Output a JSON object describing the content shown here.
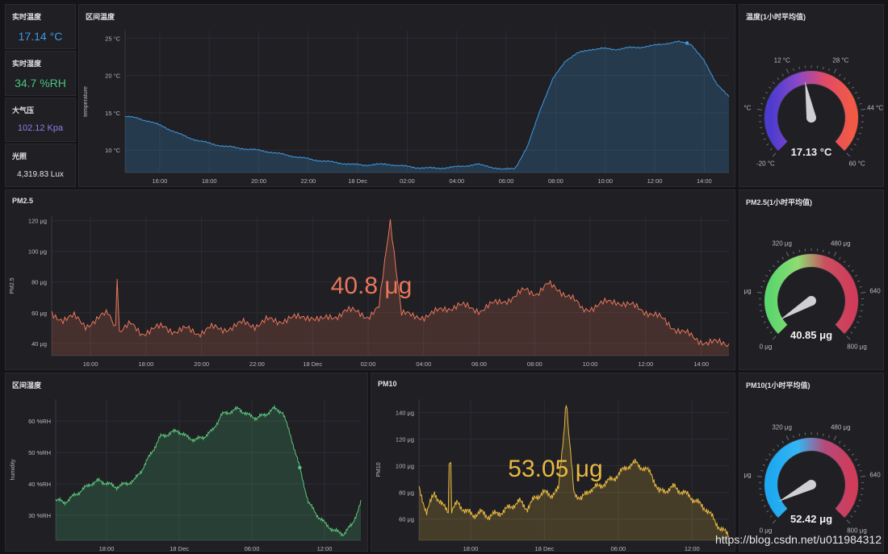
{
  "colors": {
    "bg": "#151518",
    "panel": "#1f1f24",
    "blue": "#3f9ae0",
    "green": "#49c47e",
    "purple": "#8f7fe8",
    "white": "#e6e6e6",
    "orange": "#e8765a",
    "yellow": "#e8b840"
  },
  "stats": [
    {
      "title": "实时温度",
      "value": "17.14 °C",
      "color": "#3f9ae0"
    },
    {
      "title": "实时湿度",
      "value": "34.7 %RH",
      "color": "#49c47e"
    },
    {
      "title": "大气压",
      "value": "102.12 Kpa",
      "color": "#8f7fe8"
    },
    {
      "title": "光照",
      "value": "4,319.83 Lux",
      "color": "#e6e6e6"
    }
  ],
  "chart_data": [
    {
      "type": "area",
      "title": "区间温度",
      "ylabel": "temperature",
      "y_ticks": [
        "25 °C",
        "20 °C",
        "15 °C",
        "10 °C"
      ],
      "ylim": [
        7,
        26
      ],
      "x_ticks": [
        "16:00",
        "18:00",
        "20:00",
        "22:00",
        "18 Dec",
        "02:00",
        "04:00",
        "06:00",
        "08:00",
        "10:00",
        "12:00",
        "14:00"
      ],
      "x": [
        0,
        1,
        2,
        3,
        4,
        5,
        6,
        7,
        8,
        9,
        10,
        11,
        12,
        13,
        14,
        15,
        16,
        17,
        18,
        19,
        20,
        21,
        22,
        23,
        24,
        25,
        26,
        27,
        28,
        29,
        30,
        31,
        32,
        33,
        34,
        35,
        36,
        37,
        38,
        39,
        40,
        41,
        42,
        43,
        44,
        45,
        46,
        47,
        48
      ],
      "values": [
        14.5,
        14.3,
        13.8,
        13.2,
        12.4,
        11.7,
        11.2,
        10.8,
        10.5,
        10.3,
        10.1,
        9.9,
        9.6,
        9.3,
        9.0,
        8.7,
        8.5,
        8.3,
        8.1,
        8.0,
        8.1,
        8.1,
        7.9,
        7.7,
        7.6,
        7.6,
        7.7,
        7.9,
        8.1,
        7.8,
        7.4,
        7.6,
        10.5,
        15.5,
        19.5,
        22.0,
        23.0,
        23.5,
        23.6,
        23.5,
        23.7,
        23.8,
        24.0,
        24.3,
        24.5,
        24.2,
        22.0,
        19.0,
        17.1
      ]
    },
    {
      "type": "area",
      "title": "PM2.5",
      "ylabel": "PM2.5",
      "big_value": "40.8 μg",
      "y_ticks": [
        "120 μg",
        "100 μg",
        "80 μg",
        "60 μg",
        "40 μg"
      ],
      "ylim": [
        32,
        123
      ],
      "x_ticks": [
        "16:00",
        "18:00",
        "20:00",
        "22:00",
        "18 Dec",
        "02:00",
        "04:00",
        "06:00",
        "08:00",
        "10:00",
        "12:00",
        "14:00"
      ],
      "x": [
        0,
        1,
        2,
        3,
        4,
        5,
        6,
        7,
        8,
        9,
        10,
        11,
        12,
        13,
        14,
        15,
        16,
        17,
        18,
        19,
        20,
        21,
        22,
        23,
        24,
        25,
        26,
        27,
        28,
        29,
        30,
        31,
        32,
        33,
        34,
        35,
        36,
        37,
        38,
        39,
        40,
        41,
        42,
        43,
        44,
        45,
        46,
        47,
        48,
        49,
        50,
        51,
        52,
        53,
        54,
        55,
        56,
        57,
        58,
        59,
        60
      ],
      "values": [
        59,
        56,
        57,
        52,
        55,
        60,
        48,
        52,
        47,
        49,
        51,
        48,
        49,
        47,
        50,
        49,
        51,
        53,
        52,
        55,
        54,
        57,
        56,
        58,
        55,
        57,
        62,
        60,
        58,
        63,
        121,
        60,
        57,
        58,
        60,
        63,
        65,
        63,
        62,
        65,
        68,
        70,
        75,
        73,
        78,
        75,
        70,
        62,
        64,
        66,
        68,
        65,
        63,
        60,
        56,
        51,
        47,
        43,
        41,
        40,
        40
      ],
      "spikes": [
        [
          5.8,
          82
        ],
        [
          30,
          121
        ]
      ]
    },
    {
      "type": "area",
      "title": "区间湿度",
      "ylabel": "humidity",
      "y_ticks": [
        "60 %RH",
        "50 %RH",
        "40 %RH",
        "30 %RH"
      ],
      "ylim": [
        22,
        67
      ],
      "x_ticks": [
        "18:00",
        "18 Dec",
        "06:00",
        "12:00"
      ],
      "x": [
        0,
        1,
        2,
        3,
        4,
        5,
        6,
        7,
        8,
        9,
        10,
        11,
        12,
        13,
        14,
        15,
        16,
        17,
        18,
        19,
        20,
        21,
        22,
        23,
        24,
        25,
        26,
        27,
        28,
        29,
        30,
        31,
        32,
        33,
        34,
        35
      ],
      "values": [
        35,
        34,
        36,
        38,
        40,
        41,
        40,
        39,
        40,
        41,
        45,
        50,
        55,
        56,
        57,
        55,
        54,
        55,
        57,
        62,
        63,
        64,
        62,
        61,
        62,
        64,
        63,
        55,
        45,
        34,
        30,
        27,
        25,
        24,
        27,
        34
      ]
    },
    {
      "type": "area",
      "title": "PM10",
      "ylabel": "PM10",
      "big_value": "53.05 μg",
      "y_ticks": [
        "140 μg",
        "120 μg",
        "100 μg",
        "80 μg",
        "60 μg"
      ],
      "ylim": [
        44,
        150
      ],
      "x_ticks": [
        "18:00",
        "18 Dec",
        "06:00",
        "12:00"
      ],
      "x": [
        0,
        1,
        2,
        3,
        4,
        5,
        6,
        7,
        8,
        9,
        10,
        11,
        12,
        13,
        14,
        15,
        16,
        17,
        18,
        19,
        20,
        21,
        22,
        23,
        24,
        25,
        26,
        27,
        28,
        29,
        30,
        31,
        32,
        33,
        34,
        35,
        36,
        37,
        38,
        39,
        40
      ],
      "values": [
        83,
        65,
        80,
        70,
        65,
        72,
        66,
        63,
        65,
        62,
        64,
        66,
        70,
        73,
        68,
        76,
        80,
        78,
        82,
        145,
        80,
        75,
        82,
        84,
        87,
        90,
        95,
        100,
        102,
        98,
        94,
        80,
        82,
        84,
        80,
        77,
        72,
        68,
        60,
        52,
        48
      ],
      "spikes": [
        [
          4,
          102
        ],
        [
          19,
          145
        ]
      ]
    }
  ],
  "gauges": [
    {
      "title": "温度(1小时平均值)",
      "value": 17.13,
      "display": "17.13 °C",
      "min": -20,
      "max": 60,
      "labels": [
        "-20 °C",
        "°C",
        "12 °C",
        "28 °C",
        "44 °C",
        "60 °C"
      ],
      "colors": [
        "#4b3ccf",
        "#8a48c9",
        "#e04a68",
        "#f25a45"
      ]
    },
    {
      "title": "PM2.5(1小时平均值)",
      "value": 40.85,
      "display": "40.85 μg",
      "min": 0,
      "max": 800,
      "labels": [
        "0 μg",
        "μg",
        "320 μg",
        "480 μg",
        "640",
        "800 μg"
      ],
      "colors": [
        "#5dd66d",
        "#8fdc72",
        "#c8505f",
        "#d03c5a"
      ]
    },
    {
      "title": "PM10(1小时平均值)",
      "value": 52.42,
      "display": "52.42 μg",
      "min": 0,
      "max": 800,
      "labels": [
        "0 μg",
        "μg",
        "320 μg",
        "480 μg",
        "640",
        "800 μg"
      ],
      "colors": [
        "#1ea8f0",
        "#35b6f2",
        "#b44a7a",
        "#d03c5a"
      ]
    }
  ],
  "watermark": "https://blog.csdn.net/u011984312"
}
